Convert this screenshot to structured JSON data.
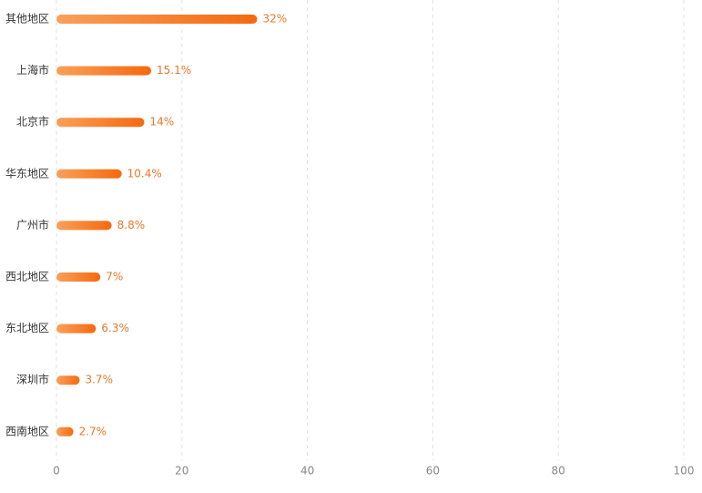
{
  "chart_data": {
    "type": "hbar",
    "categories": [
      "其他地区",
      "上海市",
      "北京市",
      "华东地区",
      "广州市",
      "西北地区",
      "东北地区",
      "深圳市",
      "西南地区"
    ],
    "values": [
      32,
      15.1,
      14,
      10.4,
      8.8,
      7,
      6.3,
      3.7,
      2.7
    ],
    "value_labels": [
      "32%",
      "15.1%",
      "14%",
      "10.4%",
      "8.8%",
      "7%",
      "6.3%",
      "3.7%",
      "2.7%"
    ],
    "color": [
      "#f9a05a",
      "#f5690f"
    ],
    "xlim": [
      0,
      100
    ],
    "xticks": [
      0,
      20,
      40,
      60,
      80,
      100
    ],
    "grid": true
  }
}
